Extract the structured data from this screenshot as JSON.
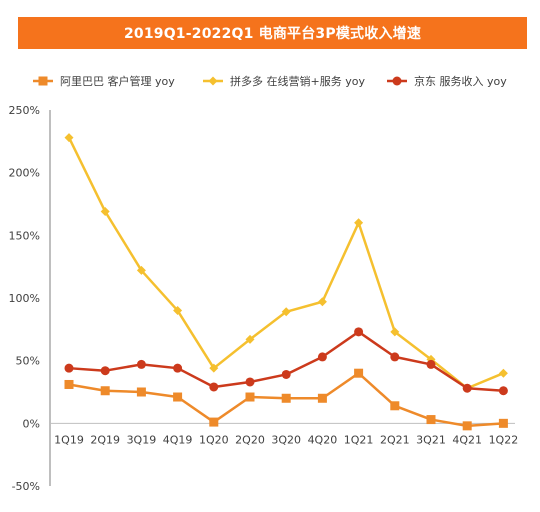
{
  "chart_data": {
    "type": "line",
    "title": "2019Q1-2022Q1 电商平台3P模式收入增速",
    "x": [
      "1Q19",
      "2Q19",
      "3Q19",
      "4Q19",
      "1Q20",
      "2Q20",
      "3Q20",
      "4Q20",
      "1Q21",
      "2Q21",
      "3Q21",
      "4Q21",
      "1Q22"
    ],
    "yticks": [
      "250%",
      "200%",
      "150%",
      "100%",
      "50%",
      "0%",
      "-50%"
    ],
    "ylim": [
      -50,
      250
    ],
    "ytick_values": [
      250,
      200,
      150,
      100,
      50,
      0,
      -50
    ],
    "grid": false,
    "legend": "top",
    "series": [
      {
        "name": "阿里巴巴 客户管理 yoy",
        "color": "#ee8a2a",
        "marker": "square",
        "values": [
          31,
          26,
          25,
          21,
          1,
          21,
          20,
          20,
          40,
          14,
          3,
          -2,
          0
        ]
      },
      {
        "name": "拼多多 在线营销+服务 yoy",
        "color": "#f5c02f",
        "marker": "diamond",
        "values": [
          228,
          169,
          122,
          90,
          44,
          67,
          89,
          97,
          160,
          73,
          51,
          28,
          40
        ]
      },
      {
        "name": "京东 服务收入 yoy",
        "color": "#cc3a1c",
        "marker": "circle",
        "values": [
          44,
          42,
          47,
          44,
          29,
          33,
          39,
          53,
          73,
          53,
          47,
          28,
          26
        ]
      }
    ]
  }
}
